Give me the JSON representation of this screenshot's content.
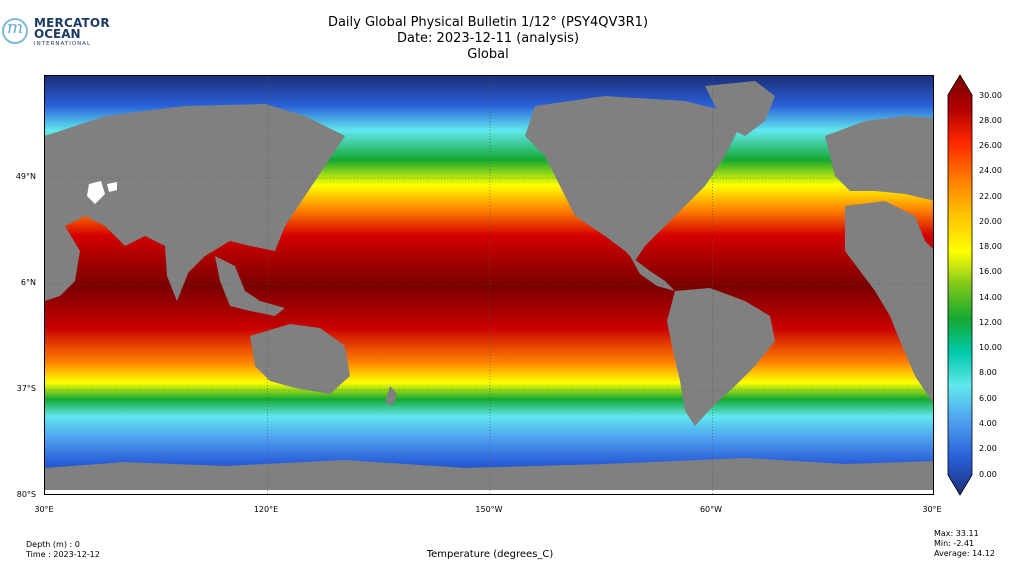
{
  "logo": {
    "line1": "MERCATOR",
    "line2": "OCEAN",
    "line3": "INTERNATIONAL",
    "mark": "m"
  },
  "title": {
    "line1": "Daily Global Physical Bulletin 1/12° (PSY4QV3R1)",
    "line2": "Date: 2023-12-11 (analysis)",
    "line3": "Global"
  },
  "map": {
    "lat_ticks": [
      "49°N",
      "6°N",
      "37°S",
      "80°S"
    ],
    "lon_ticks": [
      "30°E",
      "120°E",
      "150°W",
      "60°W",
      "30°E"
    ],
    "land_color": "#808080",
    "ice_color": "#ffffff",
    "grid": true
  },
  "colorbar": {
    "ticks": [
      "30.00",
      "28.00",
      "26.00",
      "24.00",
      "22.00",
      "20.00",
      "18.00",
      "16.00",
      "14.00",
      "12.00",
      "10.00",
      "8.00",
      "6.00",
      "4.00",
      "2.00",
      "0.00"
    ],
    "extend": "both",
    "colors": [
      "#1b2f7a",
      "#2a5fd8",
      "#4fa3f0",
      "#60e8ee",
      "#00c9a8",
      "#14a832",
      "#7ec81c",
      "#ffff00",
      "#ffc000",
      "#ff7f00",
      "#ff2600",
      "#d40000",
      "#7a0000"
    ]
  },
  "footer": {
    "depth": "Depth (m) : 0",
    "time": "Time : 2023-12-12",
    "variable": "Temperature (degrees_C)",
    "max": "Max: 33.11",
    "min": "Min: -2.41",
    "average": "Average: 14.12"
  }
}
